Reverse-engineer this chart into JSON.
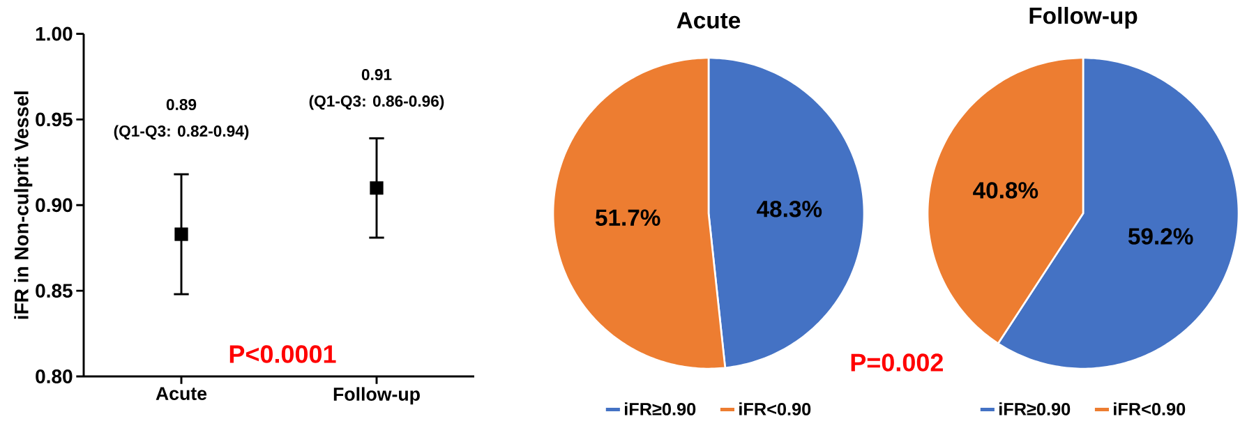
{
  "chart_data": [
    {
      "type": "scatter",
      "categories": [
        "Acute",
        "Follow-up"
      ],
      "values": [
        0.883,
        0.91
      ],
      "errors": [
        [
          0.848,
          0.918
        ],
        [
          0.881,
          0.939
        ]
      ],
      "color": "#000000",
      "marker": "square",
      "ylabel": "iFR in Non-culprit Vessel",
      "ylim": [
        0.8,
        1.0
      ],
      "yticks": [
        {
          "value": 0.8,
          "label": "0.80"
        },
        {
          "value": 0.85,
          "label": "0.85"
        },
        {
          "value": 0.9,
          "label": "0.90"
        },
        {
          "value": 0.95,
          "label": "0.95"
        },
        {
          "value": 1.0,
          "label": "1.00"
        }
      ],
      "annotations": [
        "0.89",
        "(Q1-Q3: 0.82-0.94)",
        "0.91",
        "(Q1-Q3: 0.86-0.96)",
        "P<0.0001"
      ]
    },
    {
      "type": "pie",
      "title": "Acute",
      "categories": [
        "iFR≥0.90",
        "iFR<0.90"
      ],
      "values": [
        48.3,
        51.7
      ],
      "colors": [
        "#4472c4",
        "#ed7d31"
      ],
      "value_labels": [
        "48.3%",
        "51.7%"
      ],
      "legend": "bottom",
      "annotations": [
        "P=0.002"
      ]
    },
    {
      "type": "pie",
      "title": "Follow-up",
      "categories": [
        "iFR≥0.90",
        "iFR<0.90"
      ],
      "values": [
        59.2,
        40.8
      ],
      "colors": [
        "#4472c4",
        "#ed7d31"
      ],
      "value_labels": [
        "59.2%",
        "40.8%"
      ],
      "legend": "bottom"
    }
  ]
}
